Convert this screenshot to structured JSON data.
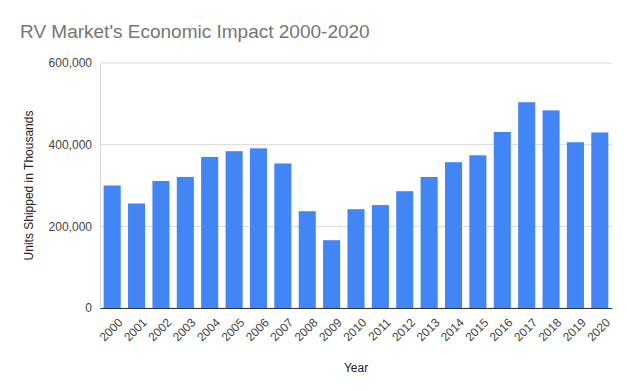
{
  "chart_data": {
    "type": "bar",
    "title": "RV Market's Economic Impact 2000-2020",
    "x_label": "Year",
    "y_label": "Units Shipped in Thousands",
    "categories": [
      "2000",
      "2001",
      "2002",
      "2003",
      "2004",
      "2005",
      "2006",
      "2007",
      "2008",
      "2009",
      "2010",
      "2011",
      "2012",
      "2013",
      "2014",
      "2015",
      "2016",
      "2017",
      "2018",
      "2019",
      "2020"
    ],
    "values": [
      300000,
      256000,
      311000,
      321000,
      370000,
      384000,
      391000,
      354000,
      237000,
      166000,
      242000,
      252000,
      286000,
      321000,
      357000,
      374000,
      431000,
      504000,
      484000,
      406000,
      430000
    ],
    "color": "#4285f4",
    "ylim": [
      0,
      600000
    ],
    "yticks": [
      0,
      {
        "value": 200000,
        "label": "200,000"
      },
      {
        "value": 400000,
        "label": "400,000"
      },
      {
        "value": 600000,
        "label": "600,000"
      }
    ],
    "grid": true
  }
}
